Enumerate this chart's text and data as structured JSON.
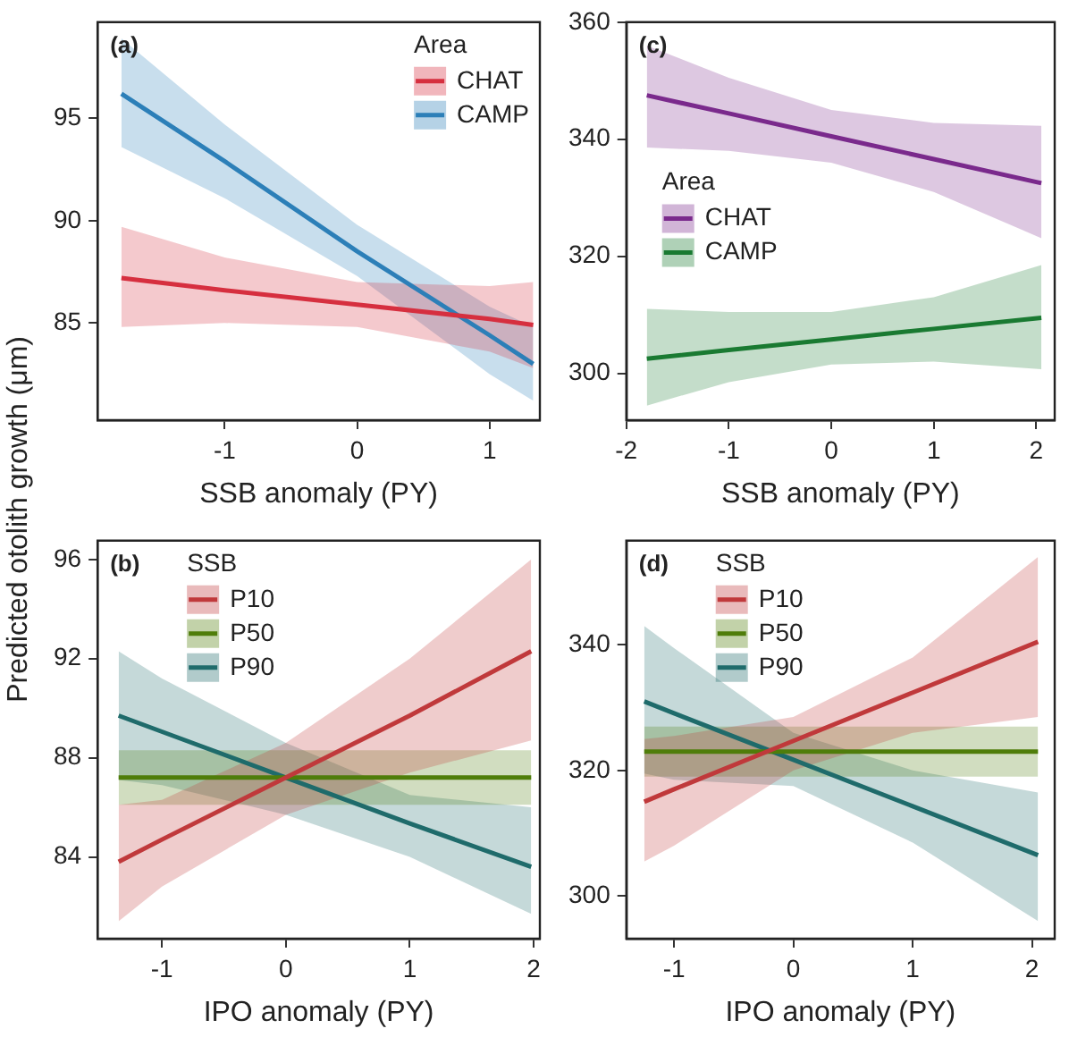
{
  "chart_data": [
    {
      "type": "line",
      "title": "(a)",
      "xlabel": "SSB anomaly (PY)",
      "ylabel": "Predicted otolith growth (μm)",
      "legend_title": "Area",
      "legend": "top right",
      "grid": false,
      "marker": "none",
      "x": [
        -1.78,
        -1,
        0,
        1,
        1.33
      ],
      "xlim": [
        -1.96,
        1.38
      ],
      "xticks": [
        -1,
        0,
        1
      ],
      "ylim": [
        80.25,
        99.7
      ],
      "yticks": [
        85,
        90,
        95
      ],
      "series": [
        {
          "name": "CHAT",
          "color": "#d62f3f",
          "values": [
            87.2,
            86.6,
            85.9,
            85.2,
            84.9
          ],
          "lower": [
            84.8,
            85.0,
            84.8,
            83.6,
            82.8
          ],
          "upper": [
            89.7,
            88.2,
            87.0,
            86.8,
            87.0
          ]
        },
        {
          "name": "CAMP",
          "color": "#2c7fb8",
          "values": [
            96.2,
            92.9,
            88.5,
            84.4,
            83.0
          ],
          "lower": [
            93.6,
            91.1,
            87.3,
            82.5,
            81.2
          ],
          "upper": [
            98.9,
            94.7,
            89.8,
            85.8,
            84.8
          ]
        }
      ]
    },
    {
      "type": "line",
      "title": "(c)",
      "xlabel": "SSB anomaly (PY)",
      "legend_title": "Area",
      "legend": "left",
      "grid": false,
      "marker": "none",
      "x": [
        -1.8,
        -1,
        0,
        1,
        2.05
      ],
      "xlim": [
        -2,
        2.18
      ],
      "xticks": [
        -2,
        -1,
        0,
        1,
        2
      ],
      "ylim": [
        292,
        360
      ],
      "yticks": [
        300,
        320,
        340,
        360
      ],
      "series": [
        {
          "name": "CHAT",
          "color": "#7a2a8c",
          "values": [
            347.5,
            344.4,
            340.5,
            336.6,
            332.5
          ],
          "lower": [
            338.6,
            338,
            336,
            331,
            323.1
          ],
          "upper": [
            356,
            350.5,
            345,
            342.8,
            342.3
          ]
        },
        {
          "name": "CAMP",
          "color": "#1a7a32",
          "values": [
            302.5,
            304.0,
            305.8,
            307.6,
            309.5
          ],
          "lower": [
            294.5,
            298.5,
            301.5,
            302,
            300.7
          ],
          "upper": [
            311,
            310.5,
            310.5,
            313,
            318.5
          ]
        }
      ]
    },
    {
      "type": "line",
      "title": "(b)",
      "xlabel": "IPO anomaly (PY)",
      "legend_title": "SSB",
      "legend": "top left",
      "grid": false,
      "marker": "none",
      "x": [
        -1.35,
        -1,
        0,
        1,
        1.98
      ],
      "xlim": [
        -1.52,
        2.05
      ],
      "xticks": [
        -1,
        0,
        1,
        2
      ],
      "ylim": [
        80.7,
        96.76
      ],
      "yticks": [
        84,
        88,
        92,
        96
      ],
      "series": [
        {
          "name": "P10",
          "color": "#c0393b",
          "values": [
            83.8,
            84.7,
            87.2,
            89.7,
            92.3
          ],
          "lower": [
            81.4,
            82.8,
            85.7,
            87.4,
            88.7
          ],
          "upper": [
            86.1,
            86.3,
            88.6,
            92.0,
            96.0
          ]
        },
        {
          "name": "P50",
          "color": "#4f7d0a",
          "values": [
            87.2,
            87.2,
            87.2,
            87.2,
            87.2
          ],
          "lower": [
            86.1,
            86.1,
            86.1,
            86.1,
            86.1
          ],
          "upper": [
            88.3,
            88.3,
            88.3,
            88.3,
            88.3
          ]
        },
        {
          "name": "P90",
          "color": "#1f6b6b",
          "values": [
            89.7,
            89.05,
            87.2,
            85.35,
            83.6
          ],
          "lower": [
            87.1,
            86.9,
            85.7,
            84.0,
            81.7
          ],
          "upper": [
            92.3,
            91.2,
            88.6,
            86.5,
            86.0
          ]
        }
      ]
    },
    {
      "type": "line",
      "title": "(d)",
      "xlabel": "IPO anomaly (PY)",
      "legend_title": "SSB",
      "legend": "top left",
      "grid": false,
      "marker": "none",
      "x": [
        -1.25,
        -1,
        0,
        1,
        2.05
      ],
      "xlim": [
        -1.4,
        2.19
      ],
      "xticks": [
        -1,
        0,
        1,
        2
      ],
      "ylim": [
        293.2,
        356.6
      ],
      "yticks": [
        300,
        320,
        340
      ],
      "series": [
        {
          "name": "P10",
          "color": "#c0393b",
          "values": [
            315,
            317,
            324.7,
            332.4,
            340.5
          ],
          "lower": [
            305.5,
            308,
            320,
            326,
            328.5
          ],
          "upper": [
            325,
            325.5,
            328.5,
            338,
            354
          ]
        },
        {
          "name": "P50",
          "color": "#4f7d0a",
          "values": [
            323,
            323,
            323,
            323,
            323
          ],
          "lower": [
            319,
            319,
            319,
            319,
            319
          ],
          "upper": [
            327,
            327,
            327,
            327,
            327
          ]
        },
        {
          "name": "P90",
          "color": "#1f6b6b",
          "values": [
            331,
            329.1,
            321.7,
            314.3,
            306.5
          ],
          "lower": [
            319.5,
            318.5,
            317.5,
            308.5,
            296
          ],
          "upper": [
            343,
            339.5,
            326,
            320,
            316.5
          ]
        }
      ]
    }
  ]
}
